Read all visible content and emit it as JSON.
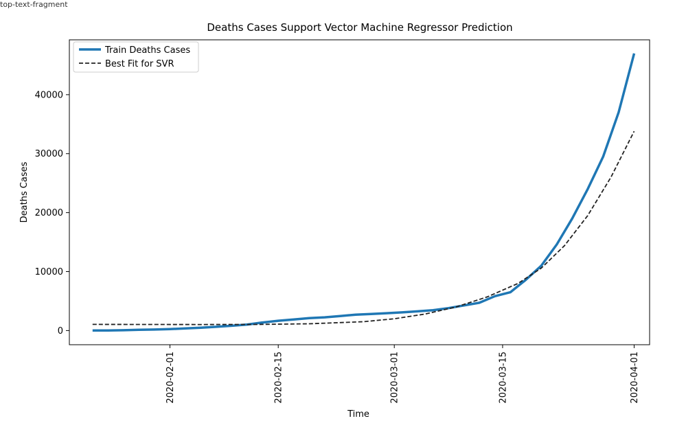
{
  "header_fragment": "top-text-fragment",
  "chart_data": {
    "type": "line",
    "title": "Deaths Cases Support Vector Machine Regressor Prediction",
    "xlabel": "Time",
    "ylabel": "Deaths Cases",
    "x_ticks": [
      "2020-02-01",
      "2020-02-15",
      "2020-03-01",
      "2020-03-15",
      "2020-04-01"
    ],
    "y_ticks": [
      0,
      10000,
      20000,
      30000,
      40000
    ],
    "xlim": [
      "2020-01-19",
      "2020-04-03"
    ],
    "ylim": [
      -2400,
      49300
    ],
    "grid": false,
    "legend_position": "top-left",
    "series": [
      {
        "name": "Train Deaths Cases",
        "color": "#1f77b4",
        "style": "solid",
        "x": [
          "2020-01-22",
          "2020-01-24",
          "2020-01-26",
          "2020-01-28",
          "2020-01-30",
          "2020-02-01",
          "2020-02-03",
          "2020-02-05",
          "2020-02-07",
          "2020-02-09",
          "2020-02-11",
          "2020-02-13",
          "2020-02-15",
          "2020-02-17",
          "2020-02-19",
          "2020-02-21",
          "2020-02-23",
          "2020-02-25",
          "2020-02-27",
          "2020-02-29",
          "2020-03-02",
          "2020-03-04",
          "2020-03-06",
          "2020-03-08",
          "2020-03-10",
          "2020-03-12",
          "2020-03-14",
          "2020-03-16",
          "2020-03-18",
          "2020-03-20",
          "2020-03-22",
          "2020-03-24",
          "2020-03-26",
          "2020-03-28",
          "2020-03-30",
          "2020-04-01"
        ],
        "values": [
          17,
          26,
          56,
          132,
          170,
          259,
          362,
          492,
          638,
          813,
          1018,
          1371,
          1666,
          1868,
          2122,
          2250,
          2469,
          2704,
          2811,
          2942,
          3085,
          3254,
          3460,
          3801,
          4262,
          4720,
          5833,
          6500,
          8600,
          11000,
          14600,
          19000,
          24000,
          29500,
          37000,
          47000
        ]
      },
      {
        "name": "Best Fit for SVR",
        "color": "#222222",
        "style": "dashed",
        "x": [
          "2020-01-22",
          "2020-01-29",
          "2020-02-05",
          "2020-02-12",
          "2020-02-19",
          "2020-02-26",
          "2020-03-01",
          "2020-03-05",
          "2020-03-09",
          "2020-03-13",
          "2020-03-17",
          "2020-03-20",
          "2020-03-23",
          "2020-03-26",
          "2020-03-29",
          "2020-04-01"
        ],
        "values": [
          1050,
          1040,
          1020,
          1040,
          1150,
          1500,
          2000,
          2800,
          4000,
          5700,
          8000,
          10600,
          14400,
          19500,
          26000,
          33800
        ]
      }
    ]
  }
}
